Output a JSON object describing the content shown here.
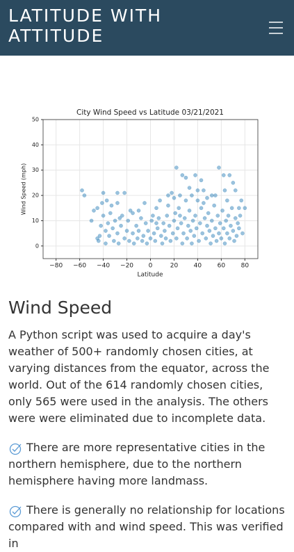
{
  "header": {
    "title": "LATITUDE WITH ATTITUDE"
  },
  "chart_data": {
    "type": "scatter",
    "title": "City Wind Speed vs Latitude 03/21/2021",
    "xlabel": "Latitude",
    "ylabel": "Wind Speed (mph)",
    "color": "#1f77b4",
    "grid": true,
    "xlim": [
      -91,
      91
    ],
    "ylim": [
      -5,
      50
    ],
    "xticks": [
      {
        "value": -80,
        "label": "−80"
      },
      {
        "value": -60,
        "label": "−60"
      },
      {
        "value": -40,
        "label": "−40"
      },
      {
        "value": -20,
        "label": "−20"
      },
      0,
      20,
      40,
      60,
      80
    ],
    "yticks": [
      0,
      10,
      20,
      30,
      40,
      50
    ],
    "x": [
      -58,
      -56,
      -45,
      -40,
      -28,
      -22,
      -28,
      -37,
      -33,
      22,
      27,
      30,
      33,
      35,
      38,
      40,
      43,
      45,
      48,
      58,
      62,
      67,
      70,
      72,
      75,
      77,
      80,
      25,
      20,
      5,
      8,
      15,
      18,
      -5,
      -10,
      -15,
      30,
      45,
      55,
      63,
      -45,
      -44,
      -43,
      -42,
      -40,
      -38,
      -38,
      -36,
      -35,
      -34,
      -32,
      -31,
      -30,
      -28,
      -27,
      -25,
      -24,
      -22,
      -20,
      -19,
      -18,
      -17,
      -15,
      -14,
      -12,
      -11,
      -10,
      -8,
      -7,
      -6,
      -4,
      -3,
      -2,
      0,
      1,
      2,
      3,
      4,
      6,
      7,
      9,
      10,
      11,
      12,
      13,
      14,
      16,
      17,
      19,
      20,
      21,
      22,
      23,
      24,
      26,
      27,
      28,
      29,
      31,
      32,
      33,
      34,
      35,
      36,
      37,
      38,
      39,
      41,
      42,
      43,
      44,
      46,
      47,
      48,
      49,
      50,
      51,
      52,
      53,
      54,
      55,
      56,
      57,
      58,
      59,
      60,
      61,
      62,
      63,
      64,
      65,
      66,
      67,
      68,
      69,
      70,
      71,
      72,
      73,
      74,
      75,
      76,
      78,
      -50,
      -48,
      -41,
      -26,
      5,
      15,
      25,
      40,
      52,
      65
    ],
    "values": [
      22,
      20,
      15,
      21,
      21,
      21,
      17,
      18,
      16,
      31,
      28,
      27,
      23,
      20,
      28,
      22,
      26,
      22,
      19,
      31,
      28,
      28,
      25,
      22,
      15,
      18,
      15,
      20,
      19,
      15,
      18,
      20,
      21,
      17,
      14,
      13,
      18,
      17,
      20,
      22,
      3,
      2,
      4,
      8,
      12,
      6,
      1,
      9,
      4,
      13,
      7,
      2,
      10,
      5,
      1,
      8,
      12,
      3,
      6,
      10,
      2,
      14,
      5,
      1,
      8,
      3,
      6,
      11,
      2,
      4,
      9,
      1,
      6,
      3,
      10,
      12,
      5,
      2,
      7,
      11,
      4,
      1,
      9,
      6,
      3,
      12,
      8,
      2,
      5,
      10,
      13,
      3,
      7,
      15,
      9,
      1,
      5,
      11,
      3,
      8,
      14,
      6,
      1,
      10,
      4,
      12,
      7,
      2,
      9,
      15,
      5,
      11,
      3,
      8,
      13,
      6,
      1,
      10,
      4,
      16,
      7,
      2,
      12,
      5,
      9,
      3,
      14,
      7,
      1,
      10,
      5,
      12,
      3,
      8,
      15,
      6,
      2,
      11,
      4,
      9,
      7,
      12,
      5,
      10,
      14,
      17,
      11,
      9,
      16,
      12,
      18,
      20,
      18
    ]
  },
  "section": {
    "heading": "Wind Speed",
    "paragraph": "A Python script was used to acquire a day's weather of 500+ randomly chosen cities, at varying distances from the equator, across the world. Out of the 614 randomly chosen cities, only 565 were used in the analysis. The others were were eliminated due to incomplete data.",
    "bullets": [
      "There are more representative cities in the northern hemisphere, due to the northern hemisphere having more landmass.",
      "There is generally no relationship for locations compared with and wind speed. This was verified in"
    ]
  }
}
